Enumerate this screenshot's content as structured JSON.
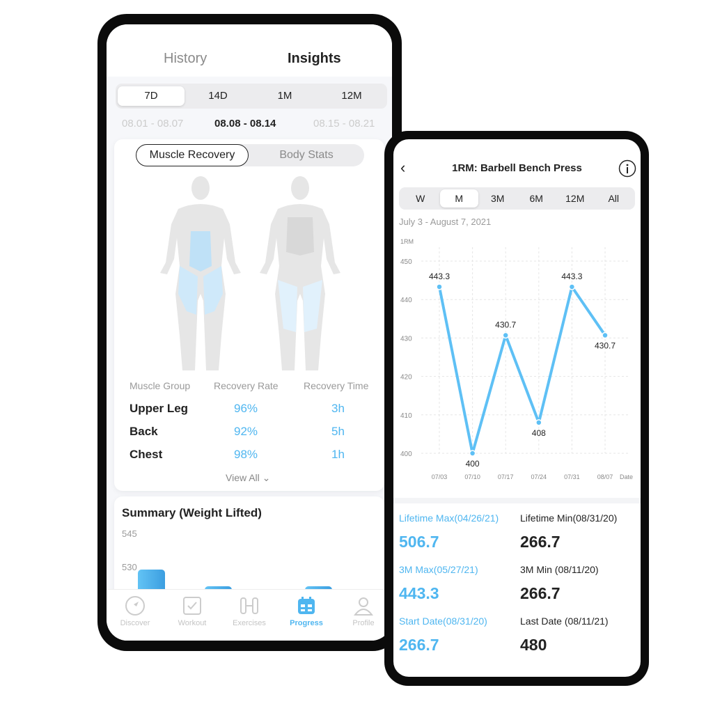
{
  "left": {
    "tabs": [
      {
        "label": "History",
        "active": false
      },
      {
        "label": "Insights",
        "active": true
      }
    ],
    "ranges": [
      {
        "label": "7D",
        "active": true
      },
      {
        "label": "14D"
      },
      {
        "label": "1M"
      },
      {
        "label": "12M"
      }
    ],
    "weeks": {
      "prev": "08.01 - 08.07",
      "current": "08.08 - 08.14",
      "next": "08.15 - 08.21"
    },
    "toggle": [
      {
        "label": "Muscle Recovery",
        "active": true
      },
      {
        "label": "Body Stats"
      }
    ],
    "table": {
      "headers": [
        "Muscle Group",
        "Recovery Rate",
        "Recovery Time"
      ],
      "rows": [
        {
          "group": "Upper Leg",
          "rate": "96%",
          "time": "3h"
        },
        {
          "group": "Back",
          "rate": "92%",
          "time": "5h"
        },
        {
          "group": "Chest",
          "rate": "98%",
          "time": "1h"
        }
      ],
      "view_all": "View All"
    },
    "summary": {
      "title": "Summary (Weight Lifted)",
      "chart_data": {
        "type": "bar",
        "y_ticks": [
          "545",
          "530"
        ],
        "values": [
          539.4,
          526,
          532,
          null,
          524.5,
          532
        ],
        "color": "#4fb6f0"
      }
    },
    "nav": [
      {
        "label": "Discover",
        "icon": "compass-icon"
      },
      {
        "label": "Workout",
        "icon": "checkbox-icon"
      },
      {
        "label": "Exercises",
        "icon": "dumbbell-icon"
      },
      {
        "label": "Progress",
        "icon": "calendar-icon",
        "active": true
      },
      {
        "label": "Profile",
        "icon": "person-icon"
      }
    ]
  },
  "right": {
    "title": "1RM: Barbell Bench Press",
    "ranges": [
      {
        "label": "W"
      },
      {
        "label": "M",
        "active": true
      },
      {
        "label": "3M"
      },
      {
        "label": "6M"
      },
      {
        "label": "12M"
      },
      {
        "label": "All"
      }
    ],
    "date_range": "July 3 - August 7, 2021",
    "chart_data": {
      "type": "line",
      "ylabel": "1RM",
      "xlabel": "Date",
      "x": [
        "07/03",
        "07/10",
        "07/17",
        "07/24",
        "07/31",
        "08/07"
      ],
      "y": [
        443.3,
        400,
        430.7,
        408,
        443.3,
        430.7
      ],
      "labels": [
        "443.3",
        "400",
        "430.7",
        "408",
        "443.3",
        "430.7"
      ],
      "y_ticks": [
        400,
        410,
        420,
        430,
        440,
        450
      ],
      "ylim": [
        400,
        450
      ],
      "grid": true,
      "color": "#5ec0f5"
    },
    "stats": [
      {
        "label": "Lifetime Max(04/26/21)",
        "value": "506.7",
        "accent": true
      },
      {
        "label": "Lifetime Min(08/31/20)",
        "value": "266.7"
      },
      {
        "label": "3M Max(05/27/21)",
        "value": "443.3",
        "accent": true
      },
      {
        "label": "3M  Min (08/11/20)",
        "value": "266.7"
      },
      {
        "label": "Start Date(08/31/20)",
        "value": "266.7",
        "accent": true
      },
      {
        "label": "Last Date (08/11/21)",
        "value": "480"
      }
    ]
  }
}
